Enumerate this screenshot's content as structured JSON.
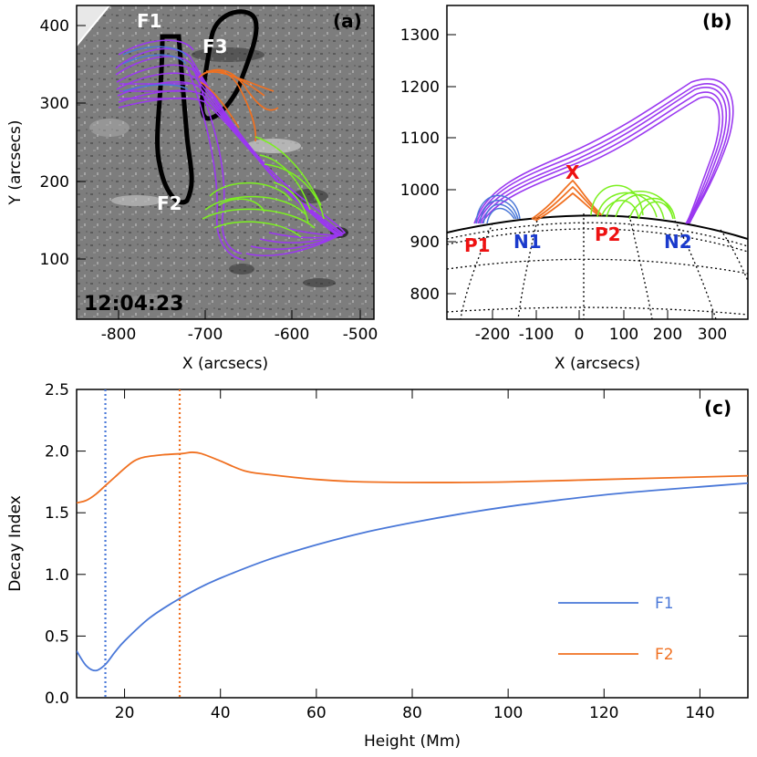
{
  "colors": {
    "purple": "#9a38f0",
    "blue": "#4a78d8",
    "orange": "#f07020",
    "green": "#7cf020",
    "red": "#ee1111",
    "navy": "#1a3acc",
    "gray": "#808080"
  },
  "panel_a": {
    "label": "(a)",
    "timestamp": "12:04:23",
    "flux_names": [
      "F1",
      "F2",
      "F3"
    ],
    "xlabel": "X (arcsecs)",
    "ylabel": "Y (arcsecs)",
    "xticks": [
      "-800",
      "-700",
      "-600",
      "-500"
    ],
    "yticks": [
      "100",
      "200",
      "300",
      "400"
    ]
  },
  "panel_b": {
    "label": "(b)",
    "footpoints": [
      "P1",
      "N1",
      "P2",
      "N2"
    ],
    "null_marker": "X",
    "xlabel": "X (arcsecs)",
    "xticks": [
      "-200",
      "-100",
      "0",
      "100",
      "200",
      "300"
    ],
    "yticks": [
      "800",
      "900",
      "1000",
      "1100",
      "1200",
      "1300"
    ]
  },
  "chart_data": {
    "type": "line",
    "panel_label": "(c)",
    "xlabel": "Height (Mm)",
    "ylabel": "Decay Index",
    "xlim": [
      10,
      150
    ],
    "ylim": [
      0,
      2.5
    ],
    "xticks": [
      "20",
      "40",
      "60",
      "80",
      "100",
      "120",
      "140"
    ],
    "yticks": [
      "0.0",
      "0.5",
      "1.0",
      "1.5",
      "2.0",
      "2.5"
    ],
    "legend_position": "bottom-right",
    "series": [
      {
        "name": "F1",
        "color": "#4a78d8",
        "x": [
          10,
          12,
          14,
          16,
          18,
          20,
          25,
          30,
          35,
          40,
          50,
          60,
          70,
          80,
          90,
          100,
          110,
          120,
          130,
          140,
          150
        ],
        "y": [
          0.38,
          0.26,
          0.22,
          0.27,
          0.37,
          0.46,
          0.64,
          0.77,
          0.88,
          0.97,
          1.12,
          1.24,
          1.34,
          1.42,
          1.49,
          1.55,
          1.6,
          1.645,
          1.68,
          1.71,
          1.74
        ]
      },
      {
        "name": "F2",
        "color": "#f07020",
        "x": [
          10,
          12,
          14,
          16,
          18,
          20,
          22,
          24,
          28,
          32,
          34,
          36,
          40,
          45,
          50,
          60,
          70,
          85,
          100,
          120,
          140,
          150
        ],
        "y": [
          1.58,
          1.6,
          1.65,
          1.72,
          1.79,
          1.86,
          1.92,
          1.95,
          1.97,
          1.98,
          1.99,
          1.98,
          1.92,
          1.84,
          1.81,
          1.77,
          1.75,
          1.745,
          1.75,
          1.77,
          1.79,
          1.8
        ]
      }
    ],
    "vlines": [
      {
        "x": 16,
        "color": "#4a78d8"
      },
      {
        "x": 31.5,
        "color": "#f07020"
      }
    ]
  }
}
